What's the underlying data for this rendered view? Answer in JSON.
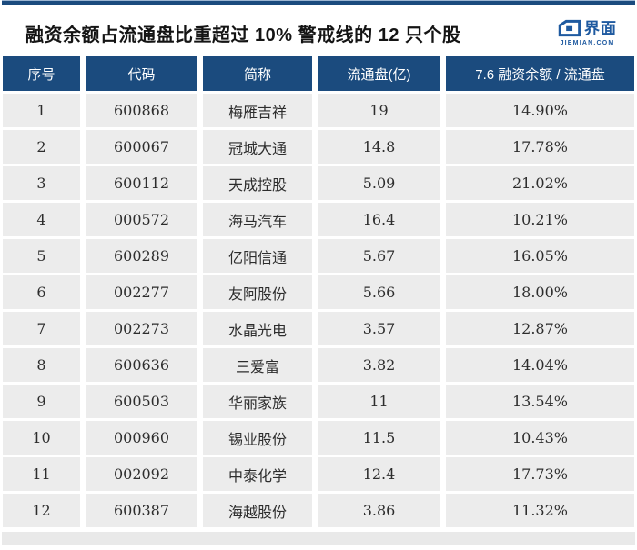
{
  "title": "融资余额占流通盘比重超过 10% 警戒线的 12 只个股",
  "logo": {
    "name": "界面",
    "domain": "JIEMIAN.COM"
  },
  "colors": {
    "header_bg": "#1b4b7e",
    "row_bg": "#ececec",
    "footer_bg": "#e9e9e9",
    "accent_bar": "#1b4b7e",
    "logo_blue": "#1f5aa0",
    "cell_text": "#2d2d2d"
  },
  "chart_data": {
    "type": "table",
    "title": "融资余额占流通盘比重超过 10% 警戒线的 12 只个股",
    "columns": [
      "序号",
      "代码",
      "简称",
      "流通盘(亿)",
      "7.6 融资余额 / 流通盘"
    ],
    "column_keys": [
      "seq",
      "code",
      "name",
      "float-shares",
      "ratio"
    ],
    "rows": [
      [
        "1",
        "600868",
        "梅雁吉祥",
        "19",
        "14.90%"
      ],
      [
        "2",
        "600067",
        "冠城大通",
        "14.8",
        "17.78%"
      ],
      [
        "3",
        "600112",
        "天成控股",
        "5.09",
        "21.02%"
      ],
      [
        "4",
        "000572",
        "海马汽车",
        "16.4",
        "10.21%"
      ],
      [
        "5",
        "600289",
        "亿阳信通",
        "5.67",
        "16.05%"
      ],
      [
        "6",
        "002277",
        "友阿股份",
        "5.66",
        "18.00%"
      ],
      [
        "7",
        "002273",
        "水晶光电",
        "3.57",
        "12.87%"
      ],
      [
        "8",
        "600636",
        "三爱富",
        "3.82",
        "14.04%"
      ],
      [
        "9",
        "600503",
        "华丽家族",
        "11",
        "13.54%"
      ],
      [
        "10",
        "000960",
        "锡业股份",
        "11.5",
        "10.43%"
      ],
      [
        "11",
        "002092",
        "中泰化学",
        "12.4",
        "17.73%"
      ],
      [
        "12",
        "600387",
        "海越股份",
        "3.86",
        "11.32%"
      ]
    ]
  }
}
